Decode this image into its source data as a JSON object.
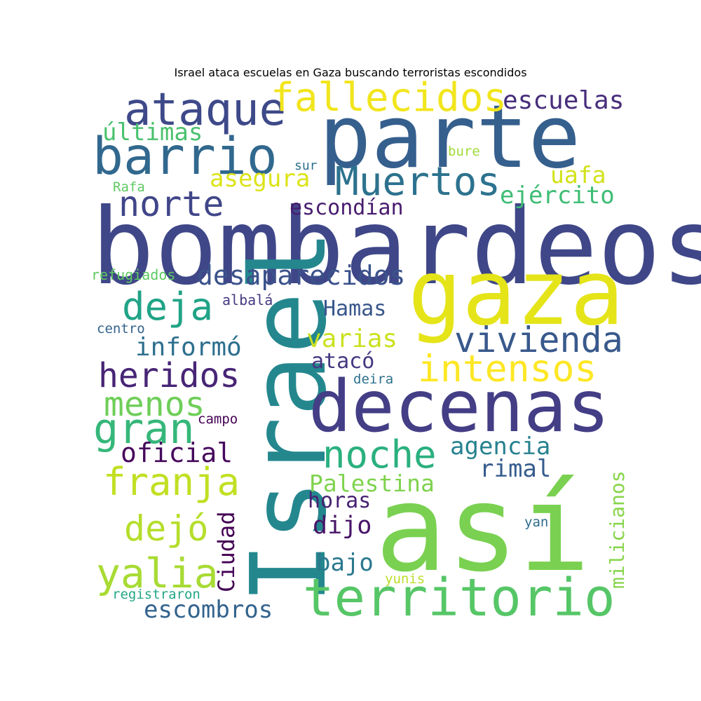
{
  "title": "Israel ataca escuelas en Gaza buscando terroristas escondidos",
  "words": [
    {
      "text": "bombardeos",
      "color": "#3f4788"
    },
    {
      "text": "parte",
      "color": "#355f8d"
    },
    {
      "text": "así",
      "color": "#7ad151"
    },
    {
      "text": "gaza",
      "color": "#e5e419"
    },
    {
      "text": "Israel",
      "color": "#24878e"
    },
    {
      "text": "decenas",
      "color": "#433e85"
    },
    {
      "text": "territorio",
      "color": "#56c667"
    },
    {
      "text": "barrio",
      "color": "#31688e"
    },
    {
      "text": "ataque",
      "color": "#3e4989"
    },
    {
      "text": "fallecidos",
      "color": "#f1e51d"
    },
    {
      "text": "Muertos",
      "color": "#2c728e"
    },
    {
      "text": "escuelas",
      "color": "#472d7b"
    },
    {
      "text": "intensos",
      "color": "#fde725"
    },
    {
      "text": "vivienda",
      "color": "#38598c"
    },
    {
      "text": "franja",
      "color": "#c2df23"
    },
    {
      "text": "heridos",
      "color": "#482576"
    },
    {
      "text": "norte",
      "color": "#404688"
    },
    {
      "text": "deja",
      "color": "#20a386"
    },
    {
      "text": "noche",
      "color": "#2ab07f"
    },
    {
      "text": "gran",
      "color": "#35b779"
    },
    {
      "text": "menos",
      "color": "#6ece58"
    },
    {
      "text": "yalia",
      "color": "#a8db34"
    },
    {
      "text": "dejó",
      "color": "#b5de2b"
    },
    {
      "text": "desaparecidos",
      "color": "#3b528b"
    },
    {
      "text": "asegura",
      "color": "#dde318"
    },
    {
      "text": "ejército",
      "color": "#3dbc74"
    },
    {
      "text": "uafa",
      "color": "#d2e21b"
    },
    {
      "text": "escondían",
      "color": "#481c6e"
    },
    {
      "text": "últimas",
      "color": "#4ac16d"
    },
    {
      "text": "informó",
      "color": "#2e6f8e"
    },
    {
      "text": "varias",
      "color": "#cae11f"
    },
    {
      "text": "Hamas",
      "color": "#39568c"
    },
    {
      "text": "atacó",
      "color": "#453781"
    },
    {
      "text": "agencia",
      "color": "#26828e"
    },
    {
      "text": "oficial",
      "color": "#46085c"
    },
    {
      "text": "Palestina",
      "color": "#7fd34e"
    },
    {
      "text": "rimal",
      "color": "#365c8d"
    },
    {
      "text": "horas",
      "color": "#482173"
    },
    {
      "text": "dijo",
      "color": "#481467"
    },
    {
      "text": "bajo",
      "color": "#2a788e"
    },
    {
      "text": "escombros",
      "color": "#33638d"
    },
    {
      "text": "Ciudad",
      "color": "#440154"
    },
    {
      "text": "milicianos",
      "color": "#86d549"
    },
    {
      "text": "refugiados",
      "color": "#5ec962"
    },
    {
      "text": "albalá",
      "color": "#443a83"
    },
    {
      "text": "centro",
      "color": "#33638d"
    },
    {
      "text": "Rafa",
      "color": "#5ec962"
    },
    {
      "text": "sur",
      "color": "#2c718e"
    },
    {
      "text": "bure",
      "color": "#a0da39"
    },
    {
      "text": "deira",
      "color": "#2d708e"
    },
    {
      "text": "campo",
      "color": "#440154"
    },
    {
      "text": "yan",
      "color": "#2e6e8e"
    },
    {
      "text": "yunis",
      "color": "#bade28"
    },
    {
      "text": "registraron",
      "color": "#22a785"
    }
  ]
}
